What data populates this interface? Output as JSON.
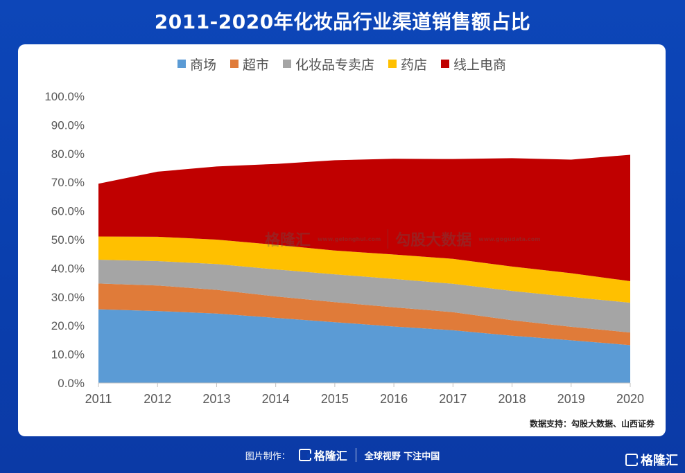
{
  "title": "2011-2020年化妆品行业渠道销售额占比",
  "legend": [
    {
      "label": "商场",
      "color": "#5b9bd5"
    },
    {
      "label": "超市",
      "color": "#e07b39"
    },
    {
      "label": "化妆品专卖店",
      "color": "#a5a5a5"
    },
    {
      "label": "药店",
      "color": "#ffc000"
    },
    {
      "label": "线上电商",
      "color": "#c00000"
    }
  ],
  "chart_data": {
    "type": "area",
    "stacked": true,
    "x": [
      "2011",
      "2012",
      "2013",
      "2014",
      "2015",
      "2016",
      "2017",
      "2018",
      "2019",
      "2020"
    ],
    "ylim": [
      0,
      100
    ],
    "yticks": [
      "0.0%",
      "10.0%",
      "20.0%",
      "30.0%",
      "40.0%",
      "50.0%",
      "60.0%",
      "70.0%",
      "80.0%",
      "90.0%",
      "100.0%"
    ],
    "series": [
      {
        "name": "商场",
        "color": "#5b9bd5",
        "values": [
          25.7,
          25.1,
          24.2,
          22.7,
          21.2,
          19.7,
          18.4,
          16.5,
          14.9,
          13.2
        ]
      },
      {
        "name": "超市",
        "color": "#e07b39",
        "values": [
          9.0,
          8.9,
          8.3,
          7.5,
          7.0,
          6.7,
          6.3,
          5.4,
          4.7,
          4.4
        ]
      },
      {
        "name": "化妆品专卖店",
        "color": "#a5a5a5",
        "values": [
          8.3,
          8.5,
          9.0,
          9.4,
          9.7,
          9.9,
          9.9,
          10.2,
          10.4,
          10.4
        ]
      },
      {
        "name": "药店",
        "color": "#ffc000",
        "values": [
          8.1,
          8.5,
          8.5,
          8.6,
          8.3,
          8.5,
          8.7,
          8.5,
          8.3,
          7.5
        ]
      },
      {
        "name": "线上电商",
        "color": "#c00000",
        "values": [
          18.4,
          22.7,
          25.5,
          28.2,
          31.5,
          33.4,
          34.8,
          37.8,
          39.6,
          44.1
        ]
      }
    ]
  },
  "watermark": {
    "brand": "格隆汇",
    "site": "www.gelonghui.com",
    "partner": "勾股大数据",
    "partner_site": "www.gogudata.com"
  },
  "source": "数据支持：勾股大数据、山西证券",
  "footer": {
    "made_by": "图片制作：",
    "brand": "格隆汇",
    "slogan": "全球视野 下注中国"
  },
  "corner_brand": "格隆汇"
}
